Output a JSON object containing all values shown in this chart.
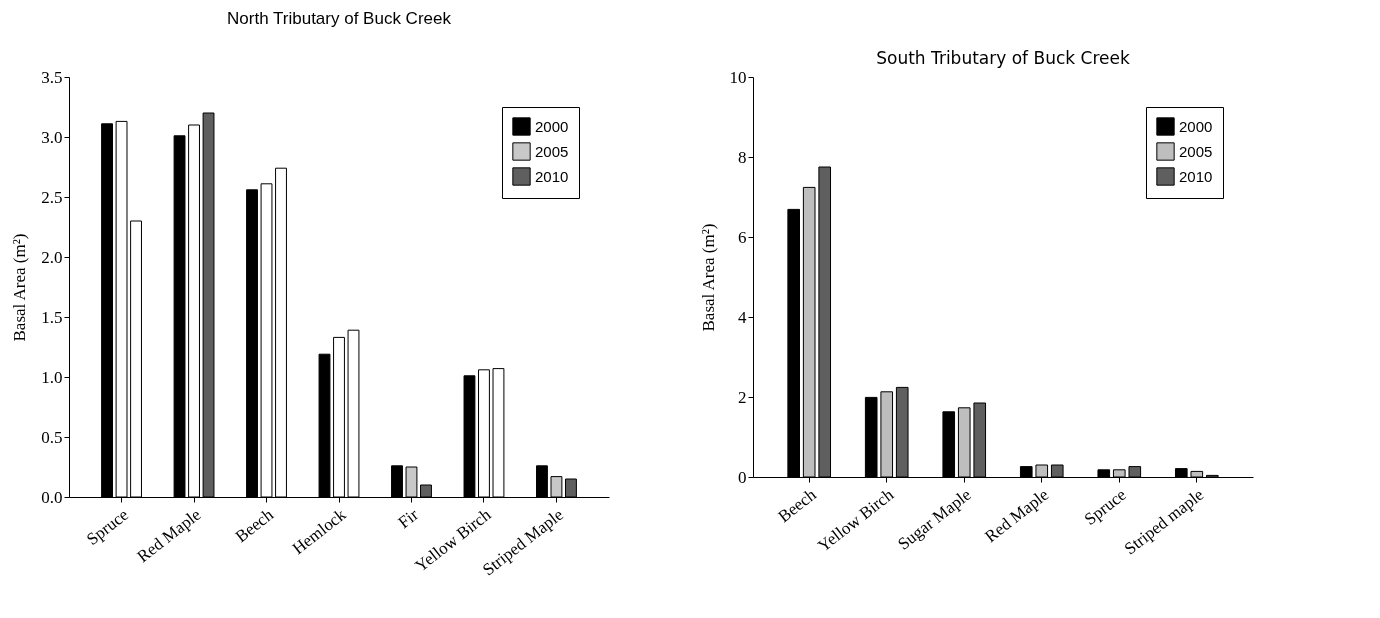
{
  "chart_data": [
    {
      "type": "bar",
      "title": "North Tributary of Buck Creek",
      "ylabel": "Basal Area (m²)",
      "categories": [
        "Spruce",
        "Red Maple",
        "Beech",
        "Hemlock",
        "Fir",
        "Yellow Birch",
        "Striped Maple"
      ],
      "ylim": [
        0,
        3.5
      ],
      "yticks": [
        {
          "value": 0,
          "label": "0.0"
        },
        0.5,
        {
          "value": 1,
          "label": "1.0"
        },
        1.5,
        {
          "value": 2,
          "label": "2.0"
        },
        2.5,
        {
          "value": 3,
          "label": "3.0"
        },
        3.5
      ],
      "legend": "top right",
      "series": [
        {
          "name": "2000",
          "color": "#000000",
          "values": [
            3.11,
            3.01,
            2.56,
            1.19,
            0.26,
            1.01,
            0.26
          ]
        },
        {
          "name": "2005",
          "color": "#c8c8c8",
          "colors": [
            "#ffffff",
            "#ffffff",
            "#ffffff",
            "#ffffff",
            "#c8c8c8",
            "#ffffff",
            "#c8c8c8"
          ],
          "values": [
            3.13,
            3.1,
            2.61,
            1.33,
            0.25,
            1.06,
            0.17
          ]
        },
        {
          "name": "2010",
          "color": "#5f5f5f",
          "colors": [
            "#ffffff",
            "#5f5f5f",
            "#ffffff",
            "#ffffff",
            "#5f5f5f",
            "#ffffff",
            "#5f5f5f"
          ],
          "values": [
            2.3,
            3.2,
            2.74,
            1.39,
            0.1,
            1.07,
            0.15
          ]
        }
      ]
    },
    {
      "type": "bar",
      "title": "South Tributary of Buck Creek",
      "ylabel": "Basal Area (m²)",
      "categories": [
        "Beech",
        "Yellow Birch",
        "Sugar Maple",
        "Red Maple",
        "Spruce",
        "Striped maple"
      ],
      "ylim": [
        0,
        10
      ],
      "yticks": [
        0,
        2,
        4,
        6,
        8,
        10
      ],
      "legend": "top right",
      "series": [
        {
          "name": "2000",
          "color": "#000000",
          "values": [
            6.69,
            1.99,
            1.63,
            0.26,
            0.18,
            0.21
          ]
        },
        {
          "name": "2005",
          "color": "#bebebe",
          "values": [
            7.24,
            2.13,
            1.73,
            0.3,
            0.18,
            0.14
          ]
        },
        {
          "name": "2010",
          "color": "#5f5f5f",
          "values": [
            7.75,
            2.24,
            1.85,
            0.3,
            0.26,
            0.04
          ]
        }
      ]
    }
  ]
}
